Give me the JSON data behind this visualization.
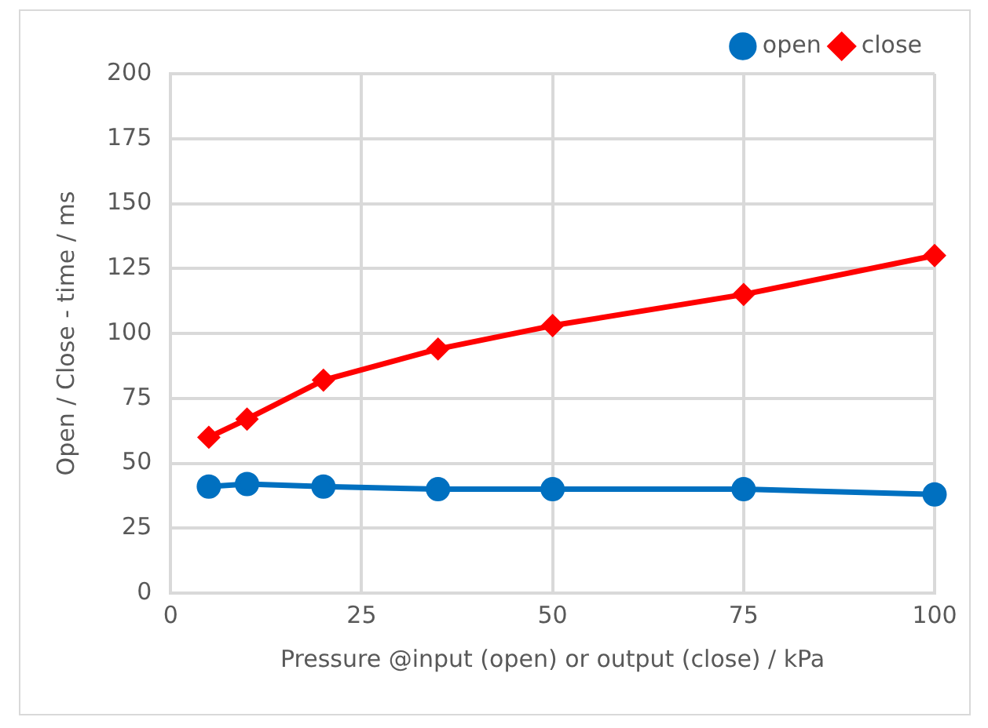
{
  "chart_data": {
    "type": "line",
    "xlabel": "Pressure @input (open) or output (close) / kPa",
    "ylabel": "Open / Close - time / ms",
    "x": [
      5,
      10,
      20,
      35,
      50,
      75,
      100
    ],
    "series": [
      {
        "name": "open",
        "color": "#0070c0",
        "marker": "circle",
        "values": [
          41,
          42,
          41,
          40,
          40,
          40,
          38
        ]
      },
      {
        "name": "close",
        "color": "#ff0000",
        "marker": "diamond",
        "values": [
          60,
          67,
          82,
          94,
          103,
          115,
          130
        ]
      }
    ],
    "xlim": [
      0,
      100
    ],
    "xticks": [
      0,
      25,
      50,
      75,
      100
    ],
    "ylim": [
      0,
      200
    ],
    "yticks": [
      0,
      25,
      50,
      75,
      100,
      125,
      150,
      175,
      200
    ],
    "grid": true,
    "legend": "top right",
    "line_style": "solid"
  }
}
